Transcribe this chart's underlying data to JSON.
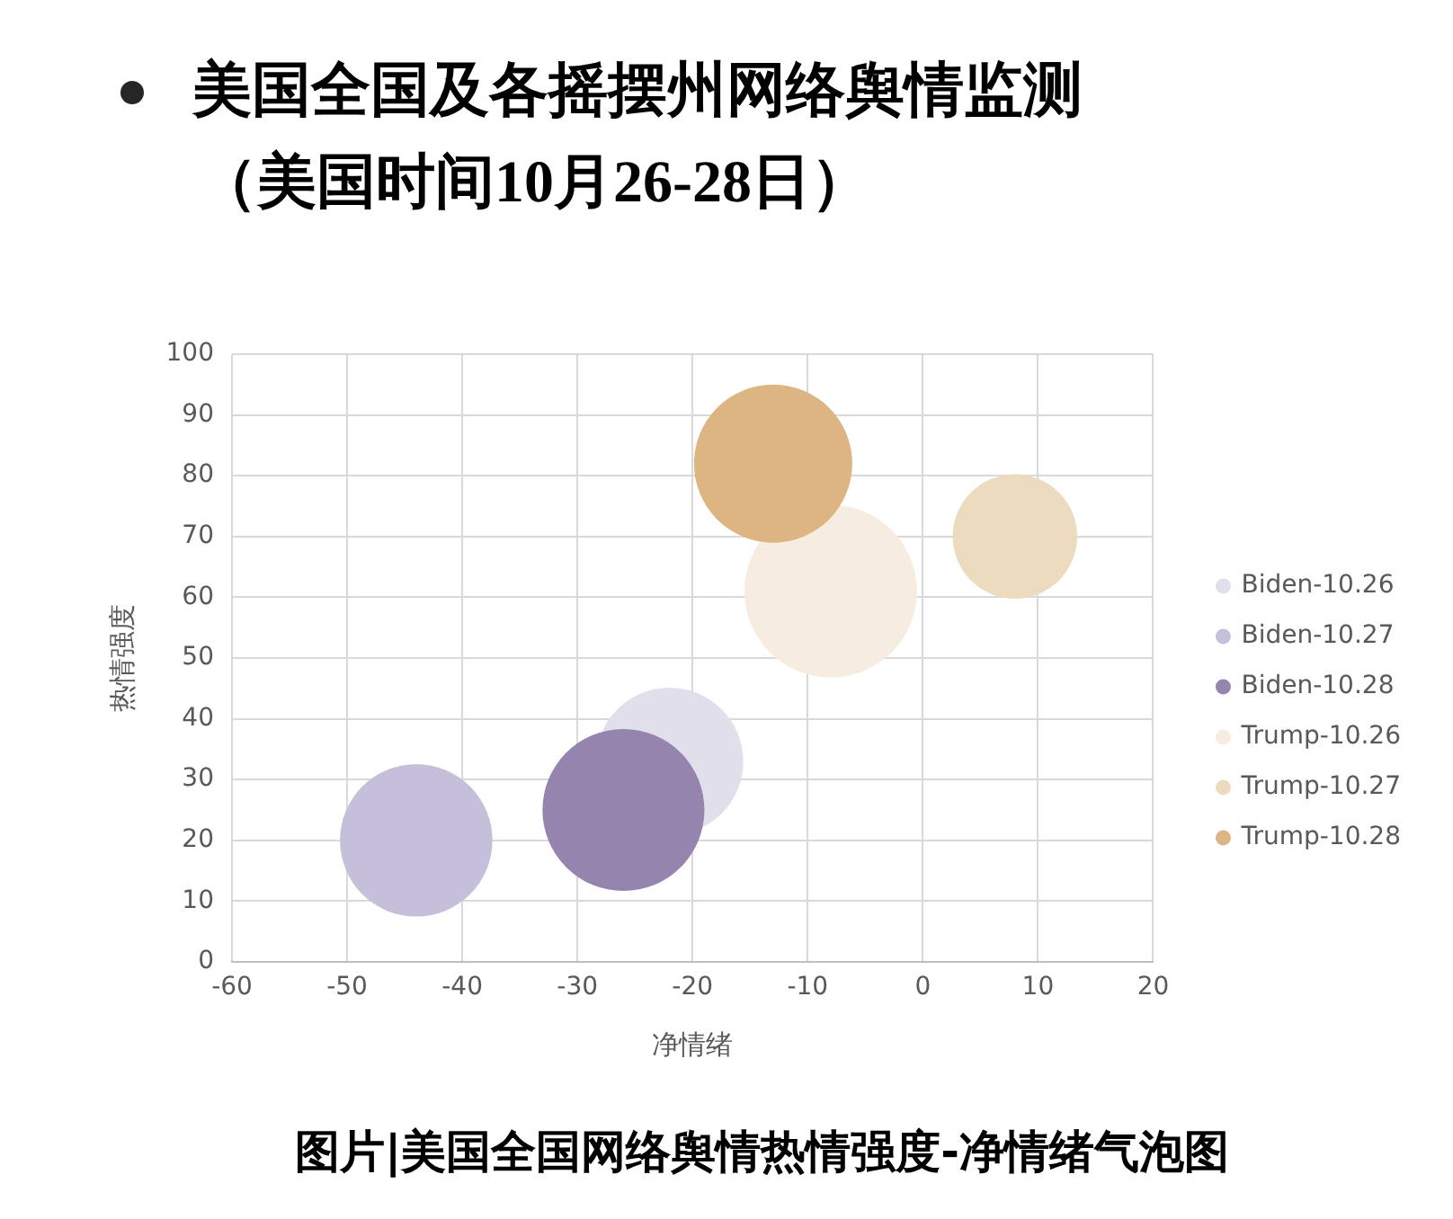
{
  "chart_data": {
    "type": "bubble",
    "title": "美国全国及各摇摆州网络舆情监测",
    "subtitle": "（美国时间10月26-28日）",
    "xlabel": "净情绪",
    "ylabel": "热情强度",
    "series": [
      {
        "name": "Biden-10.26",
        "color": "#e2dfec",
        "x": [
          -22
        ],
        "values": [
          33
        ],
        "sizes": [
          0.73
        ]
      },
      {
        "name": "Biden-10.27",
        "color": "#c6bfd9",
        "x": [
          -44
        ],
        "values": [
          20
        ],
        "sizes": [
          0.78
        ]
      },
      {
        "name": "Biden-10.28",
        "color": "#9484ae",
        "x": [
          -26
        ],
        "values": [
          25
        ],
        "sizes": [
          0.88
        ]
      },
      {
        "name": "Trump-10.26",
        "color": "#f6ecdf",
        "x": [
          -8
        ],
        "values": [
          61
        ],
        "sizes": [
          1
        ]
      },
      {
        "name": "Trump-10.27",
        "color": "#eddbbf",
        "x": [
          8
        ],
        "values": [
          70
        ],
        "sizes": [
          0.52
        ]
      },
      {
        "name": "Trump-10.28",
        "color": "#dcb582",
        "x": [
          -13
        ],
        "values": [
          82
        ],
        "sizes": [
          0.84
        ]
      }
    ],
    "xlim": [
      -60,
      20
    ],
    "xticks": [
      -60,
      -50,
      -40,
      -30,
      -20,
      -10,
      0,
      10,
      20
    ],
    "ylim": [
      0,
      100
    ],
    "yticks": [
      0,
      10,
      20,
      30,
      40,
      50,
      60,
      70,
      80,
      90,
      100
    ],
    "grid": true,
    "legend": "right",
    "annotations": [
      "图片|美国全国网络舆情热情强度-净情绪气泡图"
    ]
  }
}
